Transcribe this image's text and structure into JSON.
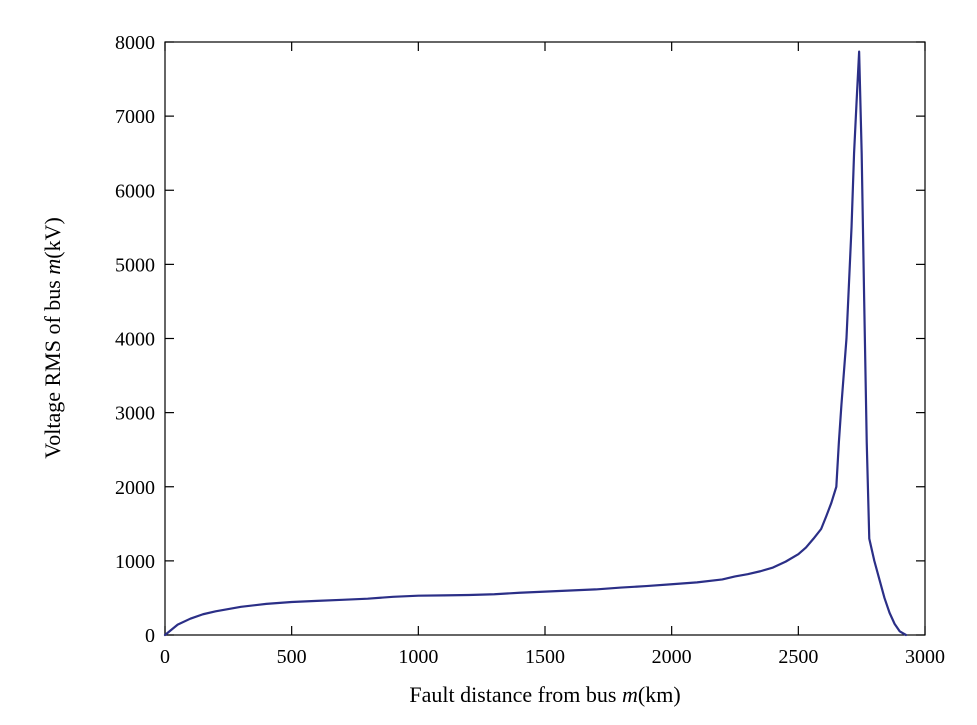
{
  "chart_data": {
    "type": "line",
    "xlabel": {
      "prefix": "Fault distance from bus ",
      "var": "m",
      "suffix": "(km)"
    },
    "ylabel": {
      "prefix": "Voltage RMS of bus ",
      "var": "m",
      "suffix": "(kV)"
    },
    "xlim": [
      0,
      3000
    ],
    "ylim": [
      0,
      8000
    ],
    "xticks": [
      0,
      500,
      1000,
      1500,
      2000,
      2500,
      3000
    ],
    "yticks": [
      0,
      1000,
      2000,
      3000,
      4000,
      5000,
      6000,
      7000,
      8000
    ],
    "grid": false,
    "line_color": "#2b2f87",
    "series": [
      {
        "x": [
          0,
          50,
          100,
          150,
          200,
          300,
          400,
          500,
          600,
          700,
          800,
          900,
          1000,
          1100,
          1200,
          1300,
          1400,
          1500,
          1600,
          1700,
          1800,
          1900,
          2000,
          2100,
          2200,
          2250,
          2300,
          2350,
          2400,
          2450,
          2500,
          2530,
          2560,
          2590,
          2610,
          2630,
          2650,
          2660,
          2670,
          2690,
          2710,
          2720,
          2730,
          2740,
          2750,
          2760,
          2770,
          2780,
          2790,
          2800,
          2820,
          2840,
          2860,
          2880,
          2900,
          2925
        ],
        "y": [
          0,
          140,
          220,
          280,
          320,
          380,
          420,
          445,
          460,
          475,
          490,
          515,
          530,
          535,
          540,
          550,
          570,
          585,
          600,
          615,
          640,
          660,
          685,
          710,
          750,
          790,
          820,
          860,
          910,
          990,
          1090,
          1180,
          1300,
          1430,
          1600,
          1780,
          2000,
          2600,
          3100,
          4000,
          5500,
          6500,
          7200,
          7870,
          6500,
          4500,
          2600,
          1300,
          1150,
          1000,
          750,
          500,
          300,
          150,
          50,
          0
        ]
      }
    ]
  }
}
